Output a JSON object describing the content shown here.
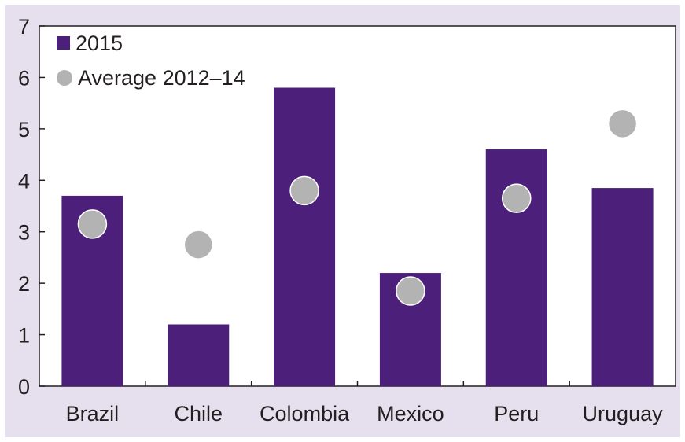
{
  "chart_data": {
    "type": "bar",
    "categories": [
      "Brazil",
      "Chile",
      "Colombia",
      "Mexico",
      "Peru",
      "Uruguay"
    ],
    "series": [
      {
        "name": "2015",
        "kind": "bar",
        "color": "#4b1f7a",
        "values": [
          3.7,
          1.2,
          5.8,
          2.2,
          4.6,
          3.85
        ]
      },
      {
        "name": "Average 2012–14",
        "kind": "marker",
        "color": "#b3b3b3",
        "values": [
          3.15,
          2.75,
          3.8,
          1.85,
          3.65,
          5.1
        ]
      }
    ],
    "yticks": [
      "0",
      "1",
      "2",
      "3",
      "4",
      "5",
      "6",
      "7"
    ],
    "ylim": [
      0,
      7
    ],
    "grid": false,
    "legend_position": "top-left",
    "colors": {
      "frame_background": "#e6e0ee",
      "plot_background": "#ffffff",
      "axis": "#231f20"
    }
  }
}
